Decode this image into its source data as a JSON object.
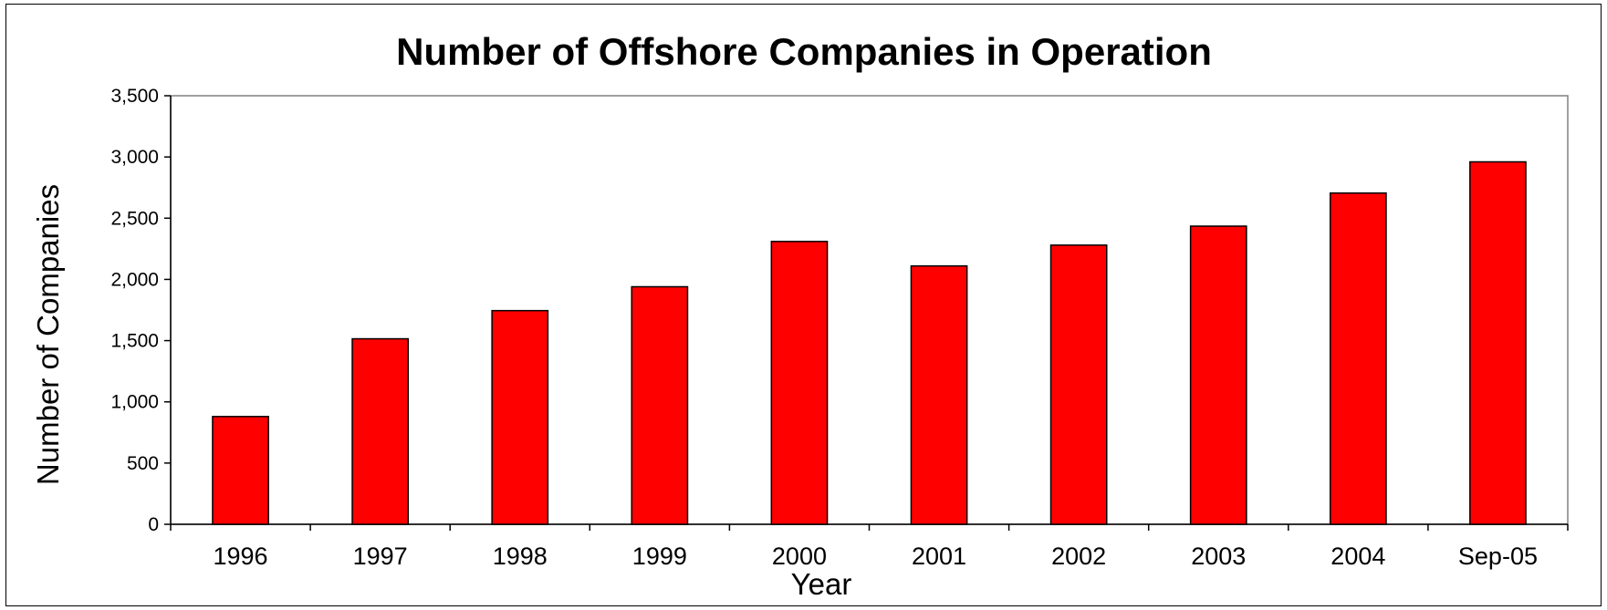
{
  "chart_data": {
    "type": "bar",
    "title": "Number of Offshore Companies in Operation",
    "xlabel": "Year",
    "ylabel": "Number of Companies",
    "categories": [
      "1996",
      "1997",
      "1998",
      "1999",
      "2000",
      "2001",
      "2002",
      "2003",
      "2004",
      "Sep-05"
    ],
    "values": [
      880,
      1515,
      1745,
      1940,
      2310,
      2110,
      2280,
      2435,
      2705,
      2960
    ],
    "ylim": [
      0,
      3500
    ],
    "yticks": [
      "0",
      "500",
      "1,000",
      "1,500",
      "2,000",
      "2,500",
      "3,000",
      "3,500"
    ],
    "grid": false,
    "legend": "none",
    "bar_color": "#ff0000",
    "bar_edge_color": "#000000"
  }
}
